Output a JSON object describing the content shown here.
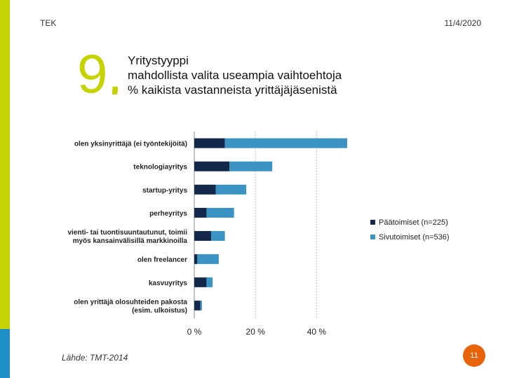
{
  "header": {
    "org": "TEK",
    "date": "11/4/2020"
  },
  "slide": {
    "number": "9.",
    "title_lines": [
      "Yritystyyppi",
      "mahdollista valita useampia vaihtoehtoja",
      "% kaikista vastanneista yrittäjäjäsenistä"
    ]
  },
  "footer": {
    "source": "Lähde: TMT-2014",
    "page": "11"
  },
  "colors": {
    "accent": "#c5d300",
    "accent_blue": "#1e8fc6",
    "series1": "#14284b",
    "series2": "#3a93c3",
    "badge": "#e8630a"
  },
  "chart_data": {
    "type": "bar",
    "orientation": "horizontal",
    "stacked": true,
    "categories": [
      [
        "olen yksinyrittäjä (ei työntekijöitä)"
      ],
      [
        "teknologiayritys"
      ],
      [
        "startup-yritys"
      ],
      [
        "perheyritys"
      ],
      [
        "vienti- tai tuontisuuntautunut, toimii",
        "myös kansainvälisillä markkinoilla"
      ],
      [
        "olen freelancer"
      ],
      [
        "kasvuyritys"
      ],
      [
        "olen yrittäjä olosuhteiden pakosta",
        "(esim. ulkoistus)"
      ]
    ],
    "series": [
      {
        "name": "Päätoimiset (n=225)",
        "values": [
          10,
          11.5,
          7,
          4,
          5.5,
          1,
          4,
          2
        ]
      },
      {
        "name": "Sivutoimiset (n=536)",
        "values": [
          40,
          14,
          10,
          9,
          4.5,
          7,
          2,
          0.5
        ]
      }
    ],
    "xticks": [
      0,
      20,
      40
    ],
    "xtick_labels": [
      "0 %",
      "20 %",
      "40 %"
    ],
    "xlim": [
      0,
      50
    ],
    "legend_position": "right"
  }
}
